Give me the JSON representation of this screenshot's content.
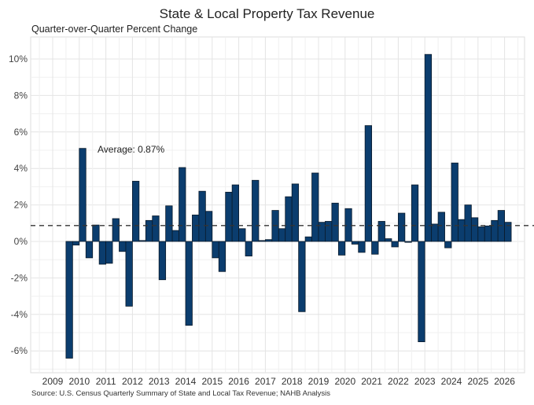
{
  "chart_data": {
    "type": "bar",
    "title": "State & Local Property Tax Revenue",
    "subtitle": "Quarter-over-Quarter Percent Change",
    "source": "Source: U.S. Census Quarterly Summary of State and Local Tax Revenue; NAHB Analysis",
    "xlabel": "",
    "ylabel": "",
    "ylim": [
      -7,
      10.5
    ],
    "y_ticks": [
      -6,
      -4,
      -2,
      0,
      2,
      4,
      6,
      8,
      10
    ],
    "y_tick_labels": [
      "-6%",
      "-4%",
      "-2%",
      "0%",
      "2%",
      "4%",
      "6%",
      "8%",
      "10%"
    ],
    "x_ticks": [
      "2009",
      "2010",
      "2011",
      "2012",
      "2013",
      "2014",
      "2015",
      "2016",
      "2017",
      "2018",
      "2019",
      "2020",
      "2021",
      "2022",
      "2023",
      "2024",
      "2025",
      "2026"
    ],
    "x_start_year": 2009,
    "first_quarter_index": 2,
    "grid": true,
    "bar_color": "#0b3d6e",
    "average": {
      "value": 0.87,
      "label": "Average: 0.87%"
    },
    "values": [
      -6.4,
      -0.2,
      5.1,
      -0.9,
      0.9,
      -1.25,
      -1.2,
      1.25,
      -0.55,
      -3.55,
      3.3,
      0.05,
      1.15,
      1.4,
      -2.1,
      1.95,
      0.6,
      4.05,
      -4.6,
      1.45,
      2.75,
      1.65,
      -0.9,
      -1.65,
      2.7,
      3.1,
      0.7,
      -0.8,
      3.35,
      0.05,
      0.1,
      1.7,
      0.7,
      2.45,
      3.15,
      -3.85,
      0.25,
      3.75,
      1.05,
      1.1,
      2.1,
      -0.75,
      1.8,
      -0.15,
      -0.6,
      6.35,
      -0.7,
      1.1,
      0.15,
      -0.3,
      1.55,
      -0.05,
      3.1,
      -5.5,
      10.25,
      0.95,
      1.6,
      -0.35,
      4.3,
      1.2,
      2.0,
      1.3,
      0.8,
      0.85,
      1.15,
      1.7,
      1.05
    ]
  }
}
